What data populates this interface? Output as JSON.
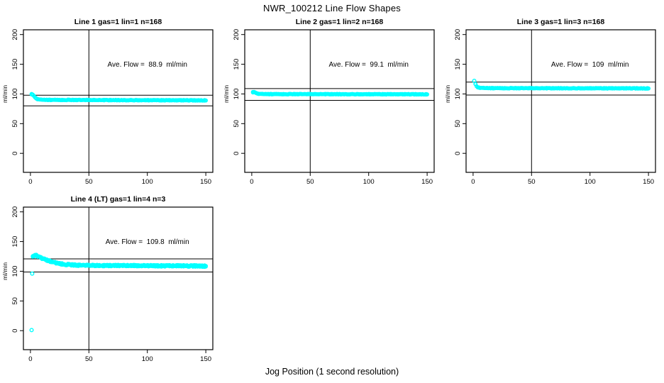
{
  "page": {
    "title": "NWR_100212  Line Flow Shapes",
    "x_axis_label": "Jog Position (1 second resolution)"
  },
  "colors": {
    "background": "#ffffff",
    "point": "#00ffff",
    "axis_and_lines": "#000000",
    "text": "#000000"
  },
  "chart_data": [
    {
      "type": "scatter",
      "title": "Line 1 gas=1 lin=1 n=168",
      "annotation": "Ave. Flow =  88.9  ml/min",
      "ave_flow_ml_min": 88.9,
      "n": 168,
      "ylabel": "ml/min",
      "xlim": [
        0,
        150
      ],
      "ylim": [
        0,
        200
      ],
      "xticks": [
        0,
        50,
        100,
        150
      ],
      "yticks": [
        0,
        50,
        100,
        150,
        200
      ],
      "vline_x": 50,
      "hlines": [
        97.8,
        80.0
      ],
      "keypoints": [
        [
          1,
          99.5
        ],
        [
          2,
          98.5
        ],
        [
          3,
          96.5
        ],
        [
          4,
          94
        ],
        [
          5,
          92.3
        ],
        [
          6,
          91.2
        ],
        [
          8,
          90.4
        ],
        [
          12,
          90
        ],
        [
          30,
          89.9
        ],
        [
          60,
          89.7
        ],
        [
          100,
          89.5
        ],
        [
          150,
          89.2
        ]
      ],
      "extra_points": [],
      "runs": 2,
      "jitter": 0.55
    },
    {
      "type": "scatter",
      "title": "Line 2 gas=1 lin=2 n=168",
      "annotation": "Ave. Flow =  99.1  ml/min",
      "ave_flow_ml_min": 99.1,
      "n": 168,
      "ylabel": "ml/min",
      "xlim": [
        0,
        150
      ],
      "ylim": [
        0,
        200
      ],
      "xticks": [
        0,
        50,
        100,
        150
      ],
      "yticks": [
        0,
        50,
        100,
        150,
        200
      ],
      "vline_x": 50,
      "hlines": [
        109.0,
        89.2
      ],
      "keypoints": [
        [
          1,
          102.8
        ],
        [
          2,
          103
        ],
        [
          3,
          102.2
        ],
        [
          4,
          101.2
        ],
        [
          5,
          100.4
        ],
        [
          7,
          99.9
        ],
        [
          10,
          99.7
        ],
        [
          40,
          99.7
        ],
        [
          80,
          99.6
        ],
        [
          120,
          99.5
        ],
        [
          150,
          99.4
        ]
      ],
      "extra_points": [],
      "runs": 2,
      "jitter": 0.55
    },
    {
      "type": "scatter",
      "title": "Line 3 gas=1 lin=3 n=168",
      "annotation": "Ave. Flow =  109  ml/min",
      "ave_flow_ml_min": 109,
      "n": 168,
      "ylabel": "ml/min",
      "xlim": [
        0,
        150
      ],
      "ylim": [
        0,
        200
      ],
      "xticks": [
        0,
        50,
        100,
        150
      ],
      "yticks": [
        0,
        50,
        100,
        150,
        200
      ],
      "vline_x": 50,
      "hlines": [
        119.9,
        98.1
      ],
      "keypoints": [
        [
          2,
          116.5
        ],
        [
          3,
          112.8
        ],
        [
          4,
          111
        ],
        [
          6,
          110.2
        ],
        [
          10,
          109.8
        ],
        [
          40,
          109.7
        ],
        [
          80,
          109.6
        ],
        [
          120,
          109.5
        ],
        [
          150,
          109.4
        ]
      ],
      "extra_points": [
        [
          1,
          122
        ]
      ],
      "runs": 2,
      "jitter": 0.55
    },
    {
      "type": "scatter",
      "title": "Line 4 (LT) gas=1 lin=4 n=3",
      "annotation": "Ave. Flow =  109.8  ml/min",
      "ave_flow_ml_min": 109.8,
      "n": 3,
      "ylabel": "ml/min",
      "xlim": [
        0,
        150
      ],
      "ylim": [
        0,
        200
      ],
      "xticks": [
        0,
        50,
        100,
        150
      ],
      "yticks": [
        0,
        50,
        100,
        150,
        200
      ],
      "vline_x": 50,
      "hlines": [
        120.8,
        98.8
      ],
      "keypoints": [
        [
          2,
          124.5
        ],
        [
          3,
          126
        ],
        [
          4,
          127
        ],
        [
          5,
          126.5
        ],
        [
          6,
          125.5
        ],
        [
          8,
          123.5
        ],
        [
          10,
          121.8
        ],
        [
          13,
          119.5
        ],
        [
          16,
          117.5
        ],
        [
          20,
          115
        ],
        [
          25,
          112.8
        ],
        [
          30,
          111.5
        ],
        [
          35,
          110.8
        ],
        [
          40,
          110.2
        ],
        [
          50,
          109.8
        ],
        [
          65,
          109.6
        ],
        [
          80,
          109.8
        ],
        [
          95,
          109.4
        ],
        [
          110,
          109.2
        ],
        [
          125,
          109.3
        ],
        [
          135,
          108.8
        ],
        [
          142,
          109
        ],
        [
          150,
          108.6
        ]
      ],
      "extra_points": [
        [
          1,
          1
        ],
        [
          1.5,
          96
        ]
      ],
      "runs": 3,
      "jitter": 1.4
    }
  ]
}
